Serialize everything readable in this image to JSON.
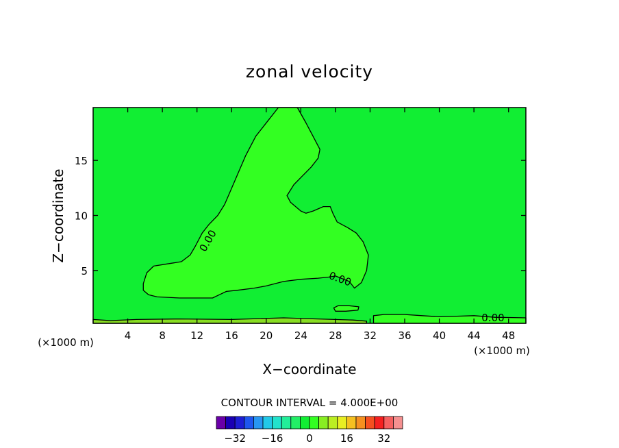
{
  "chart_data": {
    "type": "contour",
    "title": "zonal velocity",
    "xlabel": "X−coordinate",
    "ylabel": "Z−coordinate",
    "x_unit_left": "(×1000 m)",
    "x_unit_right": "(×1000 m)",
    "xlim": [
      0,
      50
    ],
    "ylim": [
      0.2,
      19.8
    ],
    "x_ticks": [
      4,
      8,
      12,
      16,
      20,
      24,
      28,
      32,
      36,
      40,
      44,
      48
    ],
    "y_ticks": [
      5,
      10,
      15
    ],
    "grid": false,
    "background_color": "#11ee33",
    "contour_level": "0.00",
    "contour_labels": [
      "0.00",
      "0.00",
      "0.00"
    ],
    "regions": [
      {
        "level": "positive",
        "color": "#33ff22",
        "boundary": [
          [
            21.4,
            19.8
          ],
          [
            20.2,
            18.6
          ],
          [
            18.8,
            17.2
          ],
          [
            17.6,
            15.4
          ],
          [
            16.4,
            13.2
          ],
          [
            15.2,
            11.0
          ],
          [
            14.4,
            10.0
          ],
          [
            13.4,
            9.2
          ],
          [
            12.6,
            8.4
          ],
          [
            11.8,
            7.2
          ],
          [
            11.2,
            6.4
          ],
          [
            10.2,
            5.8
          ],
          [
            8.6,
            5.6
          ],
          [
            7.0,
            5.4
          ],
          [
            6.2,
            4.8
          ],
          [
            5.8,
            3.8
          ],
          [
            5.8,
            3.2
          ],
          [
            6.4,
            2.8
          ],
          [
            7.4,
            2.6
          ],
          [
            10.0,
            2.5
          ],
          [
            13.8,
            2.5
          ],
          [
            14.6,
            2.8
          ],
          [
            15.4,
            3.1
          ],
          [
            16.6,
            3.2
          ],
          [
            18.6,
            3.4
          ],
          [
            20.0,
            3.6
          ],
          [
            22.0,
            4.0
          ],
          [
            24.0,
            4.2
          ],
          [
            26.0,
            4.3
          ],
          [
            27.2,
            4.4
          ],
          [
            28.0,
            4.5
          ],
          [
            29.6,
            4.0
          ],
          [
            30.2,
            3.4
          ],
          [
            31.0,
            3.9
          ],
          [
            31.6,
            5.0
          ],
          [
            31.8,
            6.4
          ],
          [
            31.2,
            7.6
          ],
          [
            30.4,
            8.4
          ],
          [
            29.4,
            8.9
          ],
          [
            28.2,
            9.4
          ],
          [
            27.7,
            10.2
          ],
          [
            27.4,
            10.8
          ],
          [
            26.6,
            10.8
          ],
          [
            25.4,
            10.4
          ],
          [
            24.6,
            10.2
          ],
          [
            24.0,
            10.4
          ],
          [
            22.8,
            11.2
          ],
          [
            22.4,
            11.8
          ],
          [
            23.2,
            12.8
          ],
          [
            24.2,
            13.6
          ],
          [
            25.2,
            14.4
          ],
          [
            26.0,
            15.2
          ],
          [
            26.2,
            16.0
          ],
          [
            25.4,
            17.2
          ],
          [
            24.6,
            18.4
          ],
          [
            23.6,
            19.8
          ]
        ]
      },
      {
        "level": "positive",
        "color": "#33ff22",
        "boundary": [
          [
            28.0,
            1.3
          ],
          [
            29.2,
            1.3
          ],
          [
            30.6,
            1.4
          ],
          [
            30.7,
            1.7
          ],
          [
            29.6,
            1.8
          ],
          [
            28.3,
            1.8
          ],
          [
            27.8,
            1.6
          ]
        ]
      },
      {
        "level": "positive",
        "color": "#33ff22",
        "boundary": [
          [
            32.4,
            0.2
          ],
          [
            32.4,
            0.9
          ],
          [
            33.6,
            1.0
          ],
          [
            36.0,
            1.0
          ],
          [
            38.0,
            0.9
          ],
          [
            40.0,
            0.8
          ],
          [
            42.0,
            0.85
          ],
          [
            44.0,
            0.9
          ],
          [
            46.4,
            0.75
          ],
          [
            50.0,
            0.7
          ],
          [
            50.0,
            0.2
          ]
        ]
      },
      {
        "level": "negative",
        "color": "#88dd22",
        "boundary": [
          [
            0.0,
            0.2
          ],
          [
            0.0,
            0.55
          ],
          [
            2.0,
            0.45
          ],
          [
            5.0,
            0.55
          ],
          [
            10.0,
            0.6
          ],
          [
            16.0,
            0.55
          ],
          [
            22.0,
            0.7
          ],
          [
            26.0,
            0.6
          ],
          [
            30.0,
            0.5
          ],
          [
            31.6,
            0.4
          ],
          [
            31.6,
            0.2
          ]
        ]
      }
    ],
    "colorbar": {
      "label": "CONTOUR INTERVAL = 4.000E+00",
      "tick_labels": [
        "−32",
        "−16",
        "0",
        "16",
        "32"
      ],
      "tick_values": [
        -32,
        -16,
        0,
        16,
        32
      ],
      "min": -40,
      "max": 40,
      "colors": [
        "#6a00a8",
        "#1a00b4",
        "#1d1ed4",
        "#1f56ee",
        "#2896f2",
        "#22c8e8",
        "#22e2cc",
        "#22ee99",
        "#22ee66",
        "#11ee33",
        "#33ff22",
        "#88ee22",
        "#bbee22",
        "#e8ee22",
        "#f5c020",
        "#f59020",
        "#f55020",
        "#f52020",
        "#f56060",
        "#f59090"
      ]
    }
  }
}
